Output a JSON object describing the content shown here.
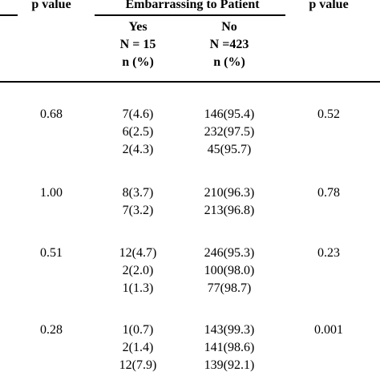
{
  "header": {
    "pvalue_left": "p value",
    "group_title": "Embarrassing to Patient",
    "pvalue_right": "p value",
    "yes": {
      "label": "Yes",
      "n": "N = 15",
      "pct": "n (%)"
    },
    "no": {
      "label": "No",
      "n": "N =423",
      "pct": "n (%)"
    }
  },
  "groups": [
    {
      "pvalue_left": "0.68",
      "pvalue_right": "0.52",
      "rows": [
        {
          "yes": "7(4.6)",
          "no": "146(95.4)"
        },
        {
          "yes": "6(2.5)",
          "no": "232(97.5)"
        },
        {
          "yes": "2(4.3)",
          "no": "45(95.7)"
        }
      ]
    },
    {
      "pvalue_left": "1.00",
      "pvalue_right": "0.78",
      "rows": [
        {
          "yes": "8(3.7)",
          "no": "210(96.3)"
        },
        {
          "yes": "7(3.2)",
          "no": "213(96.8)"
        }
      ]
    },
    {
      "pvalue_left": "0.51",
      "pvalue_right": "0.23",
      "rows": [
        {
          "yes": "12(4.7)",
          "no": "246(95.3)"
        },
        {
          "yes": "2(2.0)",
          "no": "100(98.0)"
        },
        {
          "yes": "1(1.3)",
          "no": "77(98.7)"
        }
      ]
    },
    {
      "pvalue_left": "0.28",
      "pvalue_right": "0.001",
      "rows": [
        {
          "yes": "1(0.7)",
          "no": "143(99.3)"
        },
        {
          "yes": "2(1.4)",
          "no": "141(98.6)"
        },
        {
          "yes": "12(7.9)",
          "no": "139(92.1)"
        }
      ]
    }
  ]
}
